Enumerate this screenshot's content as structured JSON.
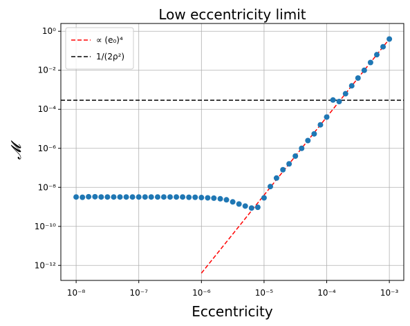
{
  "chart_data": {
    "type": "scatter",
    "title": "Low eccentricity limit",
    "xlabel": "Eccentricity",
    "ylabel": "𝓜",
    "xscale": "log",
    "yscale": "log",
    "grid": true,
    "legend": "upper left",
    "xlim": [
      5.7e-09,
      0.0017
    ],
    "ylim": [
      1.7e-13,
      2.5
    ],
    "xticks": [
      {
        "value": 1e-08,
        "label": "10⁻⁸"
      },
      {
        "value": 1e-07,
        "label": "10⁻⁷"
      },
      {
        "value": 1e-06,
        "label": "10⁻⁶"
      },
      {
        "value": 1e-05,
        "label": "10⁻⁵"
      },
      {
        "value": 0.0001,
        "label": "10⁻⁴"
      },
      {
        "value": 0.001,
        "label": "10⁻³"
      }
    ],
    "yticks": [
      {
        "value": 1e-12,
        "label": "10⁻¹²"
      },
      {
        "value": 1e-10,
        "label": "10⁻¹⁰"
      },
      {
        "value": 1e-08,
        "label": "10⁻⁸"
      },
      {
        "value": 1e-06,
        "label": "10⁻⁶"
      },
      {
        "value": 0.0001,
        "label": "10⁻⁴"
      },
      {
        "value": 0.01,
        "label": "10⁻²"
      },
      {
        "value": 1,
        "label": "10⁰"
      }
    ],
    "series": [
      {
        "name": "∝ (e₀)⁴",
        "type": "line",
        "color": "#ff0000",
        "dashed": true,
        "x": [
          1e-06,
          0.001
        ],
        "values": [
          4e-13,
          0.4
        ]
      },
      {
        "name": "1/(2ρ²)",
        "type": "hline",
        "color": "#000000",
        "dashed": true,
        "values": [
          0.00029
        ]
      },
      {
        "type": "scatter",
        "color": "#1f77b4",
        "x": [
          1e-08,
          1.26e-08,
          1.58e-08,
          2e-08,
          2.51e-08,
          3.16e-08,
          3.98e-08,
          5.01e-08,
          6.31e-08,
          7.94e-08,
          1e-07,
          1.26e-07,
          1.58e-07,
          2e-07,
          2.51e-07,
          3.16e-07,
          3.98e-07,
          5.01e-07,
          6.31e-07,
          7.94e-07,
          1e-06,
          1.26e-06,
          1.58e-06,
          2e-06,
          2.51e-06,
          3.16e-06,
          3.98e-06,
          5.01e-06,
          6.31e-06,
          7.94e-06,
          1e-05,
          1.26e-05,
          1.58e-05,
          2e-05,
          2.51e-05,
          3.16e-05,
          3.98e-05,
          5.01e-05,
          6.31e-05,
          7.94e-05,
          0.0001,
          0.000126,
          0.000158,
          0.0002,
          0.000251,
          0.000316,
          0.000398,
          0.000501,
          0.000631,
          0.000794,
          0.001
        ],
        "values": [
          3.2e-09,
          3.1e-09,
          3.3e-09,
          3.3e-09,
          3.2e-09,
          3.2e-09,
          3.2e-09,
          3.2e-09,
          3.2e-09,
          3.2e-09,
          3.2e-09,
          3.2e-09,
          3.2e-09,
          3.2e-09,
          3.2e-09,
          3.2e-09,
          3.2e-09,
          3.2e-09,
          3.1e-09,
          3.1e-09,
          3e-09,
          2.9e-09,
          2.8e-09,
          2.6e-09,
          2.3e-09,
          1.8e-09,
          1.4e-09,
          1.1e-09,
          8.7e-10,
          9.5e-10,
          2.9e-09,
          1.1e-08,
          3e-08,
          8e-08,
          1.6e-07,
          4e-07,
          1e-06,
          2.5e-06,
          5.5e-06,
          1.6e-05,
          4e-05,
          0.0003,
          0.00025,
          0.00063,
          0.0016,
          0.004,
          0.01,
          0.025,
          0.063,
          0.16,
          0.4
        ]
      }
    ]
  }
}
